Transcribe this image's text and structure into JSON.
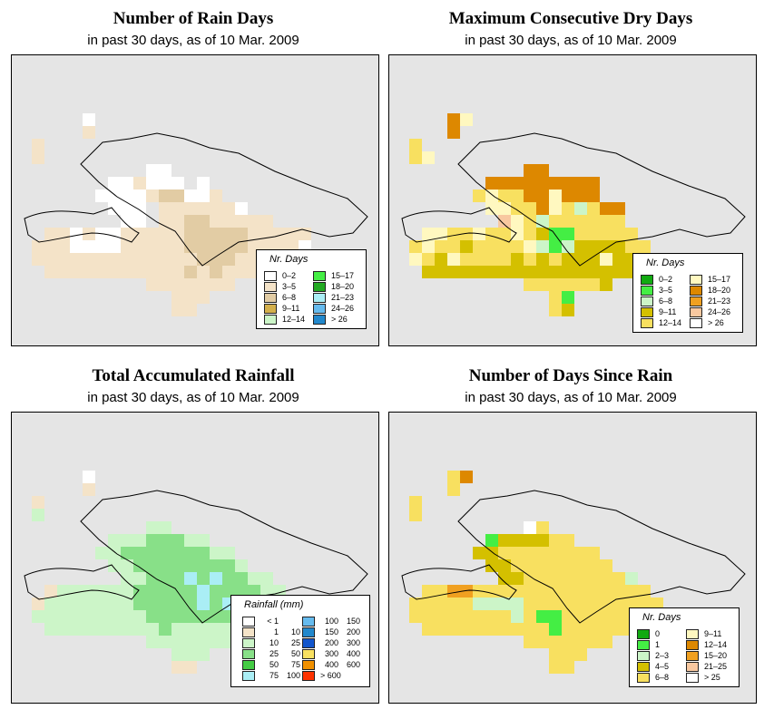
{
  "panels": [
    {
      "title": "Number of Rain Days",
      "subtitle": "in past 30 days, as of  10 Mar. 2009",
      "legend_title": "Nr. Days",
      "legend_left": [
        {
          "label": "0–2",
          "color": "#ffffff"
        },
        {
          "label": "3–5",
          "color": "#f4e3c8"
        },
        {
          "label": "6–8",
          "color": "#e2cca4"
        },
        {
          "label": "9–11",
          "color": "#d4b04c"
        },
        {
          "label": "12–14",
          "color": "#ccf5c8"
        }
      ],
      "legend_right": [
        {
          "label": "15–17",
          "color": "#44ee44"
        },
        {
          "label": "18–20",
          "color": "#22aa22"
        },
        {
          "label": "21–23",
          "color": "#aaeef5"
        },
        {
          "label": "24–26",
          "color": "#66bbee"
        },
        {
          "label": "> 26",
          "color": "#2288cc"
        }
      ],
      "grid_rows": [
        ".....w.......................",
        ".....c.......................",
        ".c...........................",
        ".c..........................",
        "..........ww.................",
        ".......wwcwww.w..............",
        "......wwwwcbbwwc.............",
        ".......www.ccccccw...........",
        "........ww.ccbbccccc.........",
        "..ccwcwwcccccbbbbbccccc......",
        ".cccwwwwcccccbbbbbccccw......",
        ".cccccccccccccbbbcccwwwww....",
        "..cccccccccccbcbcccccw.......",
        "..........ccccccc............",
        "............ccc..............",
        "............cc..............."
      ]
    },
    {
      "title": "Maximum Consecutive Dry Days",
      "subtitle": "in past 30 days, as of  10 Mar. 2009",
      "legend_title": "Nr. Days",
      "legend_left": [
        {
          "label": "0–2",
          "color": "#11aa11"
        },
        {
          "label": "3–5",
          "color": "#44ee44"
        },
        {
          "label": "6–8",
          "color": "#ccf5c8"
        },
        {
          "label": "9–11",
          "color": "#d4c000"
        },
        {
          "label": "12–14",
          "color": "#f8e060"
        }
      ],
      "legend_right": [
        {
          "label": "15–17",
          "color": "#fff8c0"
        },
        {
          "label": "18–20",
          "color": "#dd8800"
        },
        {
          "label": "21–23",
          "color": "#f0a020"
        },
        {
          "label": "24–26",
          "color": "#f8c8a0"
        },
        {
          "label": "> 26",
          "color": "#ffffff"
        }
      ],
      "grid_rows": [
        "....Xq.......................",
        "....X........................",
        ".c...........................",
        ".cq..........................",
        "..........XX.................",
        ".......XXXXXXXXX.............",
        "......cqccXXqXXX.............",
        ".......qqccXqcfcXX...........",
        "........rqcfcccccc...........",
        "..qqccqccqcbddccccc..........",
        ".cqccbccccqfdfbbbbcc.........",
        ".qcbqccccbcbcbbbqbbcbbc......",
        "..bbbbbbbbbbbbbbbbbc.........",
        "..........ccccccb............",
        "............cd...............",
        "............cb..............."
      ]
    },
    {
      "title": "Total Accumulated Rainfall",
      "subtitle": "in past 30 days, as of  10 Mar. 2009",
      "legend_title": "Rainfall (mm)",
      "legend_left": [
        {
          "lo": "< 1",
          "hi": "",
          "color": "#ffffff"
        },
        {
          "lo": "1",
          "hi": "10",
          "color": "#f4e3c8"
        },
        {
          "lo": "10",
          "hi": "25",
          "color": "#ccf5c8"
        },
        {
          "lo": "25",
          "hi": "50",
          "color": "#88e088"
        },
        {
          "lo": "50",
          "hi": "75",
          "color": "#44cc44"
        },
        {
          "lo": "75",
          "hi": "100",
          "color": "#aaeef5"
        }
      ],
      "legend_right": [
        {
          "lo": "100",
          "hi": "150",
          "color": "#66bbee"
        },
        {
          "lo": "150",
          "hi": "200",
          "color": "#2288cc"
        },
        {
          "lo": "200",
          "hi": "300",
          "color": "#1155cc"
        },
        {
          "lo": "300",
          "hi": "400",
          "color": "#f8e060"
        },
        {
          "lo": "400",
          "hi": "600",
          "color": "#f09000"
        },
        {
          "lo": "> 600",
          "hi": "",
          "color": "#ff3300"
        }
      ],
      "grid_rows": [
        ".....w.......................",
        ".....c.......................",
        ".c...........................",
        ".h...........................",
        "..........hh.................",
        ".......hhhmmmhh..............",
        "......hhmmmmmmmhh............",
        ".......hhmmmmmmmmh...........",
        "........hhmmmamammhh.........",
        "..chhhhhhmmmmmammmmhh........",
        ".chhhhhhhmmmmmamammmmmh......",
        ".hhhhhhhhhmmmmmmmhhhhhhhh....",
        "..hhhhhhhhhmhhhhhhhhh........",
        "..........hhhhhhh............",
        "............hhh..............",
        "............cc..............."
      ]
    },
    {
      "title": "Number of Days Since Rain",
      "subtitle": "in past 30 days, as of  10 Mar. 2009",
      "legend_title": "Nr. Days",
      "legend_left": [
        {
          "label": "0",
          "color": "#11aa11"
        },
        {
          "label": "1",
          "color": "#44ee44"
        },
        {
          "label": "2–3",
          "color": "#ccf5c8"
        },
        {
          "label": "4–5",
          "color": "#d4c000"
        },
        {
          "label": "6–8",
          "color": "#f8e060"
        }
      ],
      "legend_right": [
        {
          "label": "9–11",
          "color": "#fff8c0"
        },
        {
          "label": "12–14",
          "color": "#dd8800"
        },
        {
          "label": "15–20",
          "color": "#f0a020"
        },
        {
          "label": "21–25",
          "color": "#f8c8a0"
        },
        {
          "label": "> 25",
          "color": "#ffffff"
        }
      ],
      "grid_rows": [
        "....cX.......................",
        "....c........................",
        ".c...........................",
        ".c...........................",
        "..........wc.................",
        ".......bddddcc...............",
        "......ddcccccccc.............",
        ".......ddcccccccc............",
        "........ddcccccccch..........",
        "..ccqqcccccccccccccc.........",
        ".ccccchhhhccccccccccc........",
        ".cccccccchcbbcccccccccc......",
        "..ccccccccccbccccccc.........",
        "..........ccccccc............",
        "............ccc..............",
        "............cc..............."
      ]
    }
  ]
}
